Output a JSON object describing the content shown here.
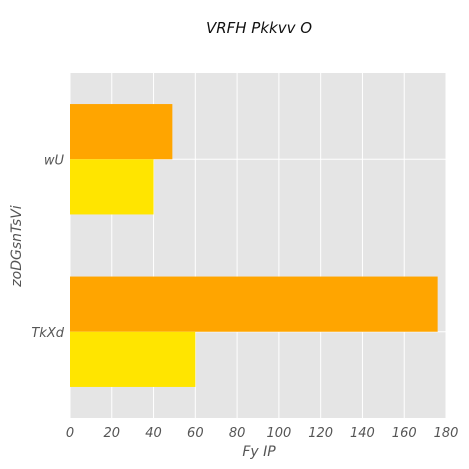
{
  "chart_data": {
    "type": "bar",
    "orientation": "horizontal",
    "title": "VRFH Pkkvv O",
    "xlabel": "Fy IP",
    "ylabel": "zoDGsnTsVi",
    "categories": [
      "wU",
      "TkXd"
    ],
    "series": [
      {
        "values": [
          49,
          176
        ],
        "color": "#FFA500"
      },
      {
        "values": [
          40,
          60
        ],
        "color": "#FFE500"
      }
    ],
    "xlim": [
      0,
      180
    ],
    "xticks": [
      0,
      20,
      40,
      60,
      80,
      100,
      120,
      140,
      160,
      180
    ],
    "grid": true,
    "legend": "none",
    "background_color": "#E5E5E5",
    "grid_color": "#FFFFFF"
  }
}
